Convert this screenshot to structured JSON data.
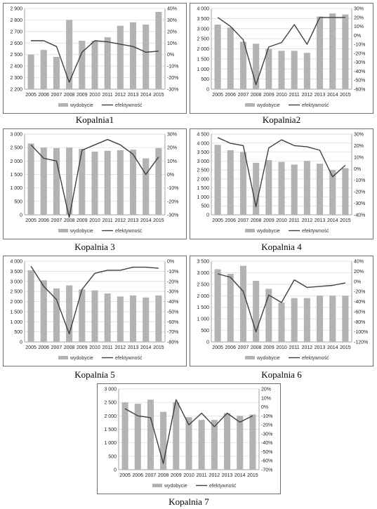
{
  "legend": {
    "bar_label": "wydobycie",
    "line_label": "efektywność"
  },
  "colors": {
    "bar": "#b3b3b3",
    "line": "#3f3f3f",
    "grid": "#d9d9d9",
    "axis": "#8c8c8c"
  },
  "chart_data": [
    {
      "type": "bar",
      "title": "Kopalnia1",
      "categories": [
        "2005",
        "2006",
        "2007",
        "2008",
        "2009",
        "2010",
        "2011",
        "2012",
        "2013",
        "2014",
        "2015"
      ],
      "series": [
        {
          "name": "wydobycie",
          "type": "bar",
          "axis": "left",
          "values": [
            2500,
            2540,
            2480,
            2800,
            2620,
            2620,
            2650,
            2750,
            2780,
            2760,
            2870
          ]
        },
        {
          "name": "efektywność",
          "type": "line",
          "axis": "right",
          "values": [
            12,
            12,
            7,
            -24,
            2,
            12,
            11,
            9,
            7,
            2,
            3
          ]
        }
      ],
      "y_left": {
        "min": 2200,
        "max": 2900,
        "step": 100,
        "tick_labels": [
          "2 200",
          "2 300",
          "2 400",
          "2 500",
          "2 600",
          "2 700",
          "2 800",
          "2 900"
        ]
      },
      "y_right": {
        "min": -30,
        "max": 40,
        "step": 10,
        "tick_labels": [
          "-30%",
          "-20%",
          "-10%",
          "0%",
          "10%",
          "20%",
          "30%",
          "40%"
        ]
      },
      "legend_position": "bottom"
    },
    {
      "type": "bar",
      "title": "Kopalnia2",
      "categories": [
        "2005",
        "2006",
        "2007",
        "2008",
        "2009",
        "2010",
        "2011",
        "2012",
        "2013",
        "2014",
        "2015"
      ],
      "series": [
        {
          "name": "wydobycie",
          "type": "bar",
          "axis": "left",
          "values": [
            3200,
            3050,
            2350,
            2250,
            2000,
            1900,
            1900,
            1800,
            3600,
            3750,
            3700
          ]
        },
        {
          "name": "efektywność",
          "type": "line",
          "axis": "right",
          "values": [
            20,
            10,
            -5,
            -55,
            -13,
            -8,
            12,
            -10,
            20,
            20,
            20
          ]
        }
      ],
      "y_left": {
        "min": 0,
        "max": 4000,
        "step": 500,
        "tick_labels": [
          "0",
          "500",
          "1 000",
          "1 500",
          "2 000",
          "2 500",
          "3 000",
          "3 500",
          "4 000"
        ]
      },
      "y_right": {
        "min": -60,
        "max": 30,
        "step": 10,
        "tick_labels": [
          "-60%",
          "-50%",
          "-40%",
          "-30%",
          "-20%",
          "-10%",
          "0%",
          "10%",
          "20%",
          "30%"
        ]
      },
      "legend_position": "bottom"
    },
    {
      "type": "bar",
      "title": "Kopalnia 3",
      "categories": [
        "2005",
        "2006",
        "2007",
        "2008",
        "2009",
        "2010",
        "2011",
        "2012",
        "2013",
        "2014",
        "2015"
      ],
      "series": [
        {
          "name": "wydobycie",
          "type": "bar",
          "axis": "left",
          "values": [
            2650,
            2500,
            2480,
            2500,
            2450,
            2350,
            2380,
            2400,
            2420,
            2100,
            2480
          ]
        },
        {
          "name": "efektywność",
          "type": "line",
          "axis": "right",
          "values": [
            22,
            12,
            10,
            -32,
            18,
            22,
            26,
            22,
            15,
            0,
            13
          ]
        }
      ],
      "y_left": {
        "min": 0,
        "max": 3000,
        "step": 500,
        "tick_labels": [
          "0",
          "500",
          "1 000",
          "1 500",
          "2 000",
          "2 500",
          "3 000"
        ]
      },
      "y_right": {
        "min": -30,
        "max": 30,
        "step": 10,
        "tick_labels": [
          "-30%",
          "-20%",
          "-10%",
          "0%",
          "10%",
          "20%",
          "30%"
        ]
      },
      "legend_position": "bottom"
    },
    {
      "type": "bar",
      "title": "Kopalnia 4",
      "categories": [
        "2005",
        "2006",
        "2007",
        "2008",
        "2009",
        "2010",
        "2011",
        "2012",
        "2013",
        "2014",
        "2015"
      ],
      "series": [
        {
          "name": "wydobycie",
          "type": "bar",
          "axis": "left",
          "values": [
            3900,
            3600,
            3500,
            2900,
            3050,
            2950,
            2800,
            3000,
            2850,
            2500,
            2600
          ]
        },
        {
          "name": "efektywność",
          "type": "line",
          "axis": "right",
          "values": [
            27,
            22,
            20,
            -33,
            18,
            25,
            20,
            19,
            16,
            -7,
            3
          ]
        }
      ],
      "y_left": {
        "min": 0,
        "max": 4500,
        "step": 500,
        "tick_labels": [
          "0",
          "500",
          "1 000",
          "1 500",
          "2 000",
          "2 500",
          "3 000",
          "3 500",
          "4 000",
          "4 500"
        ]
      },
      "y_right": {
        "min": -40,
        "max": 30,
        "step": 10,
        "tick_labels": [
          "-40%",
          "-30%",
          "-20%",
          "-10%",
          "0%",
          "10%",
          "20%",
          "30%"
        ]
      },
      "legend_position": "bottom"
    },
    {
      "type": "bar",
      "title": "Kopalnia 5",
      "categories": [
        "2005",
        "2006",
        "2007",
        "2008",
        "2009",
        "2010",
        "2011",
        "2012",
        "2013",
        "2014",
        "2015"
      ],
      "series": [
        {
          "name": "wydobycie",
          "type": "bar",
          "axis": "left",
          "values": [
            3550,
            3050,
            2650,
            2800,
            2600,
            2550,
            2400,
            2250,
            2300,
            2200,
            2300
          ]
        },
        {
          "name": "efektywność",
          "type": "line",
          "axis": "right",
          "values": [
            -5,
            -25,
            -38,
            -72,
            -28,
            -12,
            -9,
            -9,
            -6,
            -6,
            -7
          ]
        }
      ],
      "y_left": {
        "min": 0,
        "max": 4000,
        "step": 500,
        "tick_labels": [
          "0",
          "500",
          "1 000",
          "1 500",
          "2 000",
          "2 500",
          "3 000",
          "3 500",
          "4 000"
        ]
      },
      "y_right": {
        "min": -80,
        "max": 0,
        "step": 10,
        "tick_labels": [
          "-80%",
          "-70%",
          "-60%",
          "-50%",
          "-40%",
          "-30%",
          "-20%",
          "-10%",
          "0%"
        ]
      },
      "legend_position": "bottom"
    },
    {
      "type": "bar",
      "title": "Kopalnia 6",
      "categories": [
        "2005",
        "2006",
        "2007",
        "2008",
        "2009",
        "2010",
        "2011",
        "2012",
        "2013",
        "2014",
        "2015"
      ],
      "series": [
        {
          "name": "wydobycie",
          "type": "bar",
          "axis": "left",
          "values": [
            3150,
            2950,
            3300,
            2650,
            2300,
            1700,
            1900,
            1900,
            2000,
            2000,
            2000
          ]
        },
        {
          "name": "efektywność",
          "type": "line",
          "axis": "right",
          "values": [
            15,
            8,
            -20,
            -100,
            -27,
            -42,
            3,
            -12,
            -10,
            -8,
            -3
          ]
        }
      ],
      "y_left": {
        "min": 0,
        "max": 3500,
        "step": 500,
        "tick_labels": [
          "0",
          "500",
          "1 000",
          "1 500",
          "2 000",
          "2 500",
          "3 000",
          "3 500"
        ]
      },
      "y_right": {
        "min": -120,
        "max": 40,
        "step": 20,
        "tick_labels": [
          "-120%",
          "-100%",
          "-80%",
          "-60%",
          "-40%",
          "-20%",
          "0%",
          "20%",
          "40%"
        ]
      },
      "legend_position": "bottom"
    },
    {
      "type": "bar",
      "title": "Kopalnia 7",
      "categories": [
        "2005",
        "2006",
        "2007",
        "2008",
        "2009",
        "2010",
        "2011",
        "2012",
        "2013",
        "2014",
        "2015"
      ],
      "series": [
        {
          "name": "wydobycie",
          "type": "bar",
          "axis": "left",
          "values": [
            2500,
            2450,
            2600,
            2150,
            2500,
            1950,
            1850,
            1850,
            2100,
            2000,
            2050
          ]
        },
        {
          "name": "efektywność",
          "type": "line",
          "axis": "right",
          "values": [
            -2,
            -10,
            -12,
            -63,
            8,
            -20,
            -7,
            -22,
            -7,
            -17,
            -10
          ]
        }
      ],
      "y_left": {
        "min": 0,
        "max": 3000,
        "step": 500,
        "tick_labels": [
          "0",
          "500",
          "1 000",
          "1 500",
          "2 000",
          "2 500",
          "3 000"
        ]
      },
      "y_right": {
        "min": -70,
        "max": 20,
        "step": 10,
        "tick_labels": [
          "-70%",
          "-60%",
          "-50%",
          "-40%",
          "-30%",
          "-20%",
          "-10%",
          "0%",
          "10%",
          "20%"
        ]
      },
      "legend_position": "bottom"
    }
  ]
}
